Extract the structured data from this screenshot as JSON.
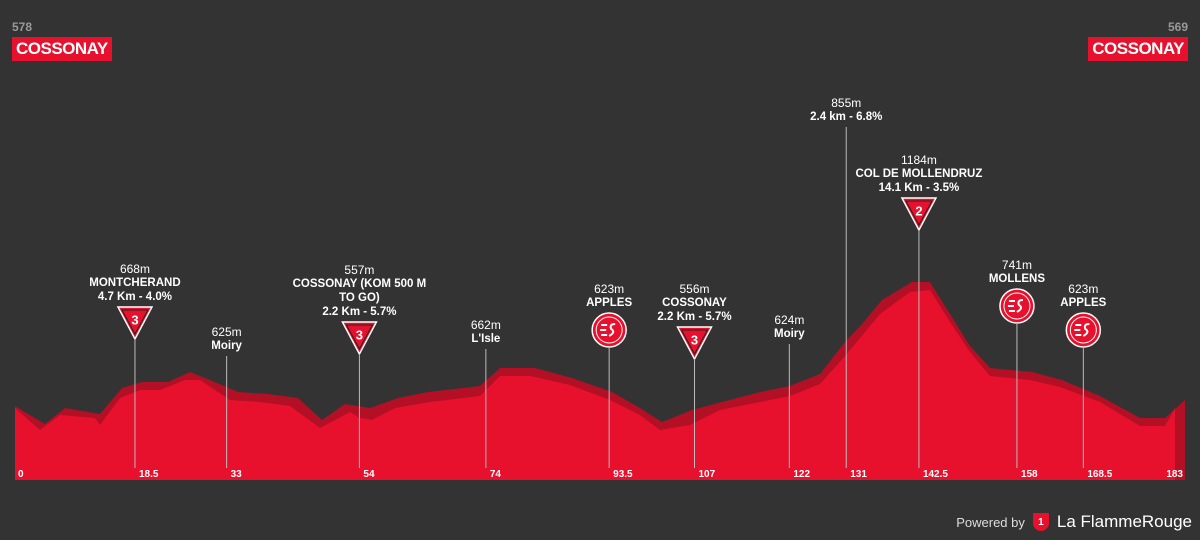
{
  "start": {
    "altitude": "578",
    "name": "COSSONAY"
  },
  "finish": {
    "altitude": "569",
    "name": "COSSONAY"
  },
  "km_range": [
    0,
    183
  ],
  "km_ticks": [
    0,
    18.5,
    33,
    54,
    74,
    93.5,
    107,
    122,
    131,
    142.5,
    158,
    168.5,
    183
  ],
  "points": [
    {
      "km": 18.5,
      "altitude": "668m",
      "name": "MONTCHERAND",
      "detail": "4.7 Km - 4.0%",
      "icon": "kom",
      "category": "3"
    },
    {
      "km": 33,
      "altitude": "625m",
      "name": "Moiry"
    },
    {
      "km": 54,
      "altitude": "557m",
      "name": "COSSONAY (KOM 500 M TO GO)",
      "detail": "2.2 Km - 5.7%",
      "icon": "kom",
      "category": "3"
    },
    {
      "km": 74,
      "altitude": "662m",
      "name": "L'Isle"
    },
    {
      "km": 93.5,
      "altitude": "623m",
      "name": "APPLES",
      "icon": "sprint"
    },
    {
      "km": 107,
      "altitude": "556m",
      "name": "COSSONAY",
      "detail": "2.2 Km - 5.7%",
      "icon": "kom",
      "category": "3"
    },
    {
      "km": 122,
      "altitude": "624m",
      "name": "Moiry"
    },
    {
      "km": 131,
      "altitude": "855m",
      "detail": "2.4 km - 6.8%"
    },
    {
      "km": 142.5,
      "altitude": "1184m",
      "name": "COL DE MOLLENDRUZ",
      "detail": "14.1 Km - 3.5%",
      "icon": "kom",
      "category": "2"
    },
    {
      "km": 158,
      "altitude": "741m",
      "name": "MOLLENS",
      "icon": "sprint"
    },
    {
      "km": 168.5,
      "altitude": "623m",
      "name": "APPLES",
      "icon": "sprint"
    }
  ],
  "footer": {
    "powered": "Powered by",
    "brand": "La FlammeRouge",
    "logo": "1"
  }
}
